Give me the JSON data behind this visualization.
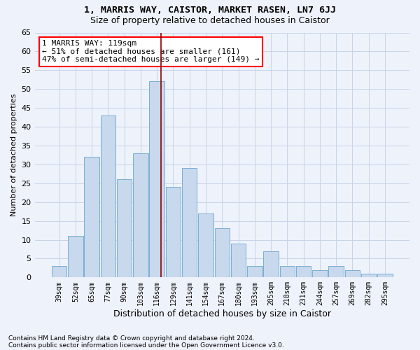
{
  "title1": "1, MARRIS WAY, CAISTOR, MARKET RASEN, LN7 6JJ",
  "title2": "Size of property relative to detached houses in Caistor",
  "xlabel": "Distribution of detached houses by size in Caistor",
  "ylabel": "Number of detached properties",
  "categories": [
    "39sqm",
    "52sqm",
    "65sqm",
    "77sqm",
    "90sqm",
    "103sqm",
    "116sqm",
    "129sqm",
    "141sqm",
    "154sqm",
    "167sqm",
    "180sqm",
    "193sqm",
    "205sqm",
    "218sqm",
    "231sqm",
    "244sqm",
    "257sqm",
    "269sqm",
    "282sqm",
    "295sqm"
  ],
  "heights": [
    3,
    11,
    32,
    43,
    26,
    33,
    52,
    24,
    29,
    17,
    13,
    9,
    3,
    7,
    3,
    3,
    2,
    3,
    2,
    1,
    1
  ],
  "bar_color": "#c8d9ee",
  "bar_edge_color": "#7aaed4",
  "vline_color": "#8b0000",
  "vline_index": 6.23,
  "annotation_text": "1 MARRIS WAY: 119sqm\n← 51% of detached houses are smaller (161)\n47% of semi-detached houses are larger (149) →",
  "annotation_box_color": "white",
  "annotation_box_edge_color": "red",
  "grid_color": "#c8d4e8",
  "bg_color": "#eef2fa",
  "ylim": [
    0,
    65
  ],
  "yticks": [
    0,
    5,
    10,
    15,
    20,
    25,
    30,
    35,
    40,
    45,
    50,
    55,
    60,
    65
  ],
  "footnote1": "Contains HM Land Registry data © Crown copyright and database right 2024.",
  "footnote2": "Contains public sector information licensed under the Open Government Licence v3.0."
}
